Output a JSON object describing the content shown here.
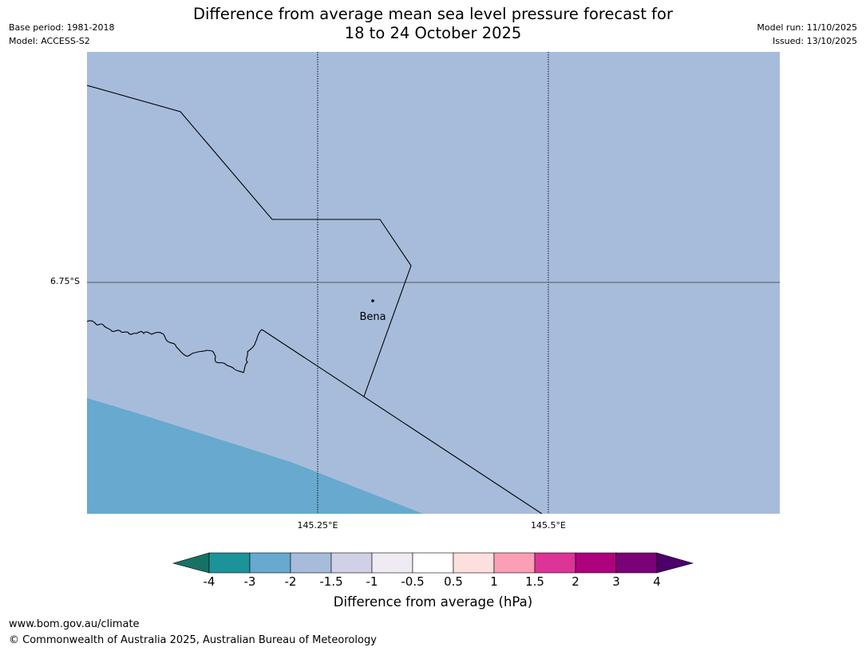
{
  "title": {
    "line1": "Difference from average mean sea level pressure forecast for",
    "line2": "18 to 24 October 2025"
  },
  "meta": {
    "base_period": "Base period: 1981-2018",
    "model": "Model: ACCESS-S2",
    "model_run": "Model run: 11/10/2025",
    "issued": "Issued: 13/10/2025"
  },
  "map": {
    "background_color": "#a7bcdb",
    "lower_zone_color": "#67a9cf",
    "latitude_labels": [
      "6.75°S"
    ],
    "longitude_labels": [
      "145.25°E",
      "145.5°E"
    ],
    "places": [
      {
        "name": "Bena"
      }
    ]
  },
  "colorbar": {
    "title": "Difference from average (hPa)",
    "tick_labels": [
      "-4",
      "-3",
      "-2",
      "-1.5",
      "-1",
      "-0.5",
      "0.5",
      "1",
      "1.5",
      "2",
      "3",
      "4"
    ],
    "colors": [
      "#167264",
      "#1c9399",
      "#67a9cf",
      "#a7bcdb",
      "#d0d1e6",
      "#f0eaf2",
      "#ffffff",
      "#fde0dd",
      "#fa9fb5",
      "#dd3497",
      "#ae017e",
      "#7a0177",
      "#4d006a"
    ]
  },
  "footer": {
    "url": "www.bom.gov.au/climate",
    "copyright": "© Commonwealth of Australia 2025, Australian Bureau of Meteorology"
  }
}
